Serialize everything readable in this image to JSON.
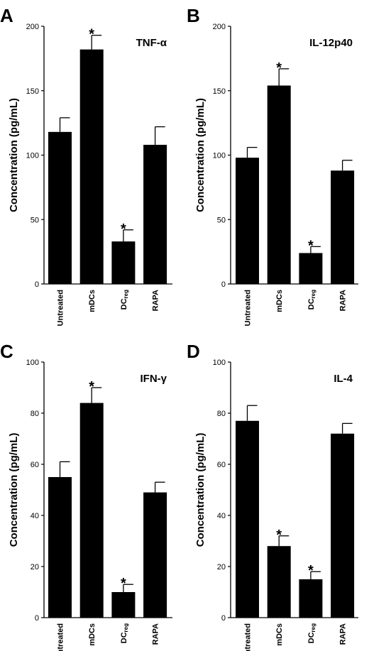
{
  "chart_data": [
    {
      "panel": "A",
      "type": "bar",
      "title": "TNF-α",
      "ylabel": "Concentration (pg/mL)",
      "ylim": [
        0,
        200
      ],
      "yticks": [
        0,
        50,
        100,
        150,
        200
      ],
      "categories": [
        {
          "main": "Untreated",
          "sub": ""
        },
        {
          "main": "mDCs",
          "sub": ""
        },
        {
          "main": "DC",
          "sub": "reg"
        },
        {
          "main": "RAPA",
          "sub": ""
        }
      ],
      "values": [
        118,
        182,
        33,
        108
      ],
      "errors": [
        11,
        11,
        9,
        14
      ],
      "significant": [
        false,
        true,
        true,
        false
      ],
      "marker": "*"
    },
    {
      "panel": "B",
      "type": "bar",
      "title": "IL-12p40",
      "ylabel": "Concentration (pg/mL)",
      "ylim": [
        0,
        200
      ],
      "yticks": [
        0,
        50,
        100,
        150,
        200
      ],
      "categories": [
        {
          "main": "Untreated",
          "sub": ""
        },
        {
          "main": "mDCs",
          "sub": ""
        },
        {
          "main": "DC",
          "sub": "reg"
        },
        {
          "main": "RAPA",
          "sub": ""
        }
      ],
      "values": [
        98,
        154,
        24,
        88
      ],
      "errors": [
        8,
        13,
        5,
        8
      ],
      "significant": [
        false,
        true,
        true,
        false
      ],
      "marker": "*"
    },
    {
      "panel": "C",
      "type": "bar",
      "title": "IFN-γ",
      "ylabel": "Concentration (pg/mL)",
      "ylim": [
        0,
        100
      ],
      "yticks": [
        0,
        20,
        40,
        60,
        80,
        100
      ],
      "categories": [
        {
          "main": "Untreated",
          "sub": ""
        },
        {
          "main": "mDCs",
          "sub": ""
        },
        {
          "main": "DC",
          "sub": "reg"
        },
        {
          "main": "RAPA",
          "sub": ""
        }
      ],
      "values": [
        55,
        84,
        10,
        49
      ],
      "errors": [
        6,
        6,
        3,
        4
      ],
      "significant": [
        false,
        true,
        true,
        false
      ],
      "marker": "*"
    },
    {
      "panel": "D",
      "type": "bar",
      "title": "IL-4",
      "ylabel": "Concentration (pg/mL)",
      "ylim": [
        0,
        100
      ],
      "yticks": [
        0,
        20,
        40,
        60,
        80,
        100
      ],
      "categories": [
        {
          "main": "Untreated",
          "sub": ""
        },
        {
          "main": "mDCs",
          "sub": ""
        },
        {
          "main": "DC",
          "sub": "reg"
        },
        {
          "main": "RAPA",
          "sub": ""
        }
      ],
      "values": [
        77,
        28,
        15,
        72
      ],
      "errors": [
        6,
        4,
        3,
        4
      ],
      "significant": [
        false,
        true,
        true,
        false
      ],
      "marker": "*"
    }
  ]
}
